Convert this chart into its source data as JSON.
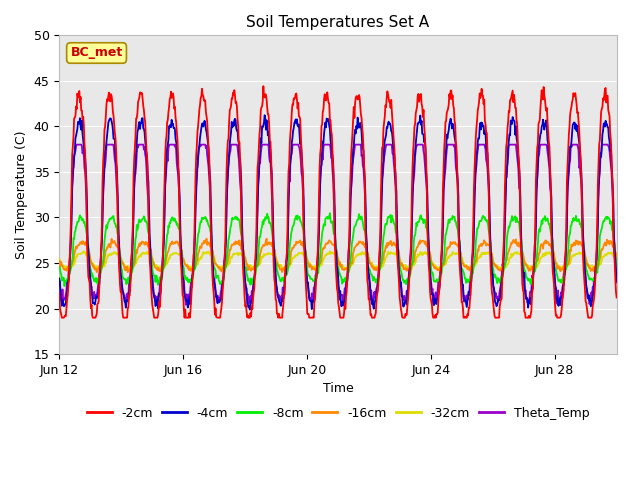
{
  "title": "Soil Temperatures Set A",
  "xlabel": "Time",
  "ylabel": "Soil Temperature (C)",
  "ylim": [
    15,
    50
  ],
  "xlim_days": [
    0,
    18
  ],
  "annotation": "BC_met",
  "annotation_color": "#cc0000",
  "annotation_bg": "#ffff99",
  "annotation_border": "#aa8800",
  "background_plot": "#e8e8e8",
  "background_fig": "#ffffff",
  "grid_color": "#ffffff",
  "yticks": [
    15,
    20,
    25,
    30,
    35,
    40,
    45,
    50
  ],
  "xtick_labels": [
    "Jun 12",
    "Jun 16",
    "Jun 20",
    "Jun 24",
    "Jun 28"
  ],
  "xtick_positions": [
    0,
    4,
    8,
    12,
    16
  ],
  "legend_entries": [
    "-2cm",
    "-4cm",
    "-8cm",
    "-16cm",
    "-32cm",
    "Theta_Temp"
  ],
  "legend_colors": [
    "#ff0000",
    "#0000cc",
    "#00ee00",
    "#ff8800",
    "#dddd00",
    "#9900cc"
  ],
  "line_colors": {
    "2cm": "#ff0000",
    "4cm": "#0000cc",
    "8cm": "#00ee00",
    "16cm": "#ff8800",
    "32cm": "#dddd00",
    "theta": "#9900cc"
  },
  "series_params": {
    "2cm": {
      "base": 31.0,
      "amp": 12.5,
      "phase": 0.38,
      "min": 19.0,
      "max": 47.0
    },
    "4cm": {
      "base": 30.5,
      "amp": 10.0,
      "phase": 0.4,
      "min": 19.0,
      "max": 42.0
    },
    "8cm": {
      "base": 26.5,
      "amp": 3.5,
      "phase": 0.44,
      "min": 21.0,
      "max": 31.0
    },
    "16cm": {
      "base": 25.8,
      "amp": 1.5,
      "phase": 0.48,
      "min": 23.0,
      "max": 28.5
    },
    "32cm": {
      "base": 25.3,
      "amp": 0.8,
      "phase": 0.52,
      "min": 23.5,
      "max": 27.0
    },
    "theta": {
      "base": 30.0,
      "amp": 9.0,
      "phase": 0.39,
      "min": 19.0,
      "max": 38.0
    }
  }
}
